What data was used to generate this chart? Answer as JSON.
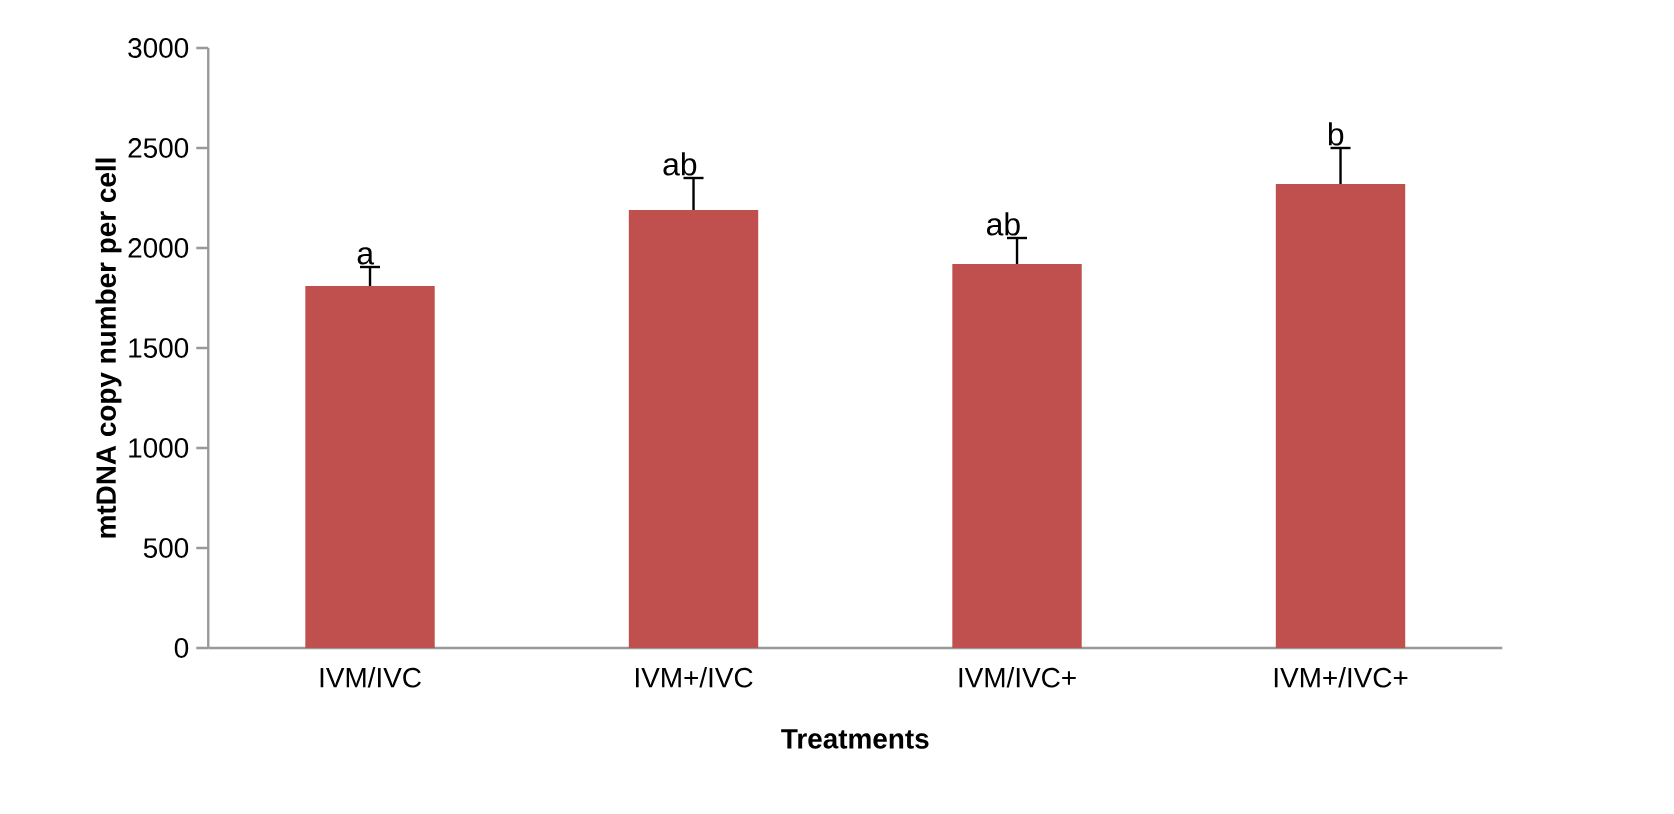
{
  "chart_data": {
    "type": "bar",
    "xlabel": "Treatments",
    "ylabel": "mtDNA copy number per cell",
    "categories": [
      "IVM/IVC",
      "IVM+/IVC",
      "IVM/IVC+",
      "IVM+/IVC+"
    ],
    "values": [
      1810,
      2190,
      1920,
      2320
    ],
    "errors": [
      95,
      160,
      130,
      180
    ],
    "color": "#c0504d",
    "ylim": [
      0,
      3000
    ],
    "yticks": [
      0,
      500,
      1000,
      1500,
      2000,
      2500,
      3000
    ],
    "annotations": [
      {
        "text": "a",
        "x": "IVM/IVC",
        "y": 1905
      },
      {
        "text": "ab",
        "x": "IVM+/IVC",
        "y": 2350
      },
      {
        "text": "ab",
        "x": "IVM/IVC+",
        "y": 2050
      },
      {
        "text": "b",
        "x": "IVM+/IVC+",
        "y": 2500
      }
    ]
  }
}
